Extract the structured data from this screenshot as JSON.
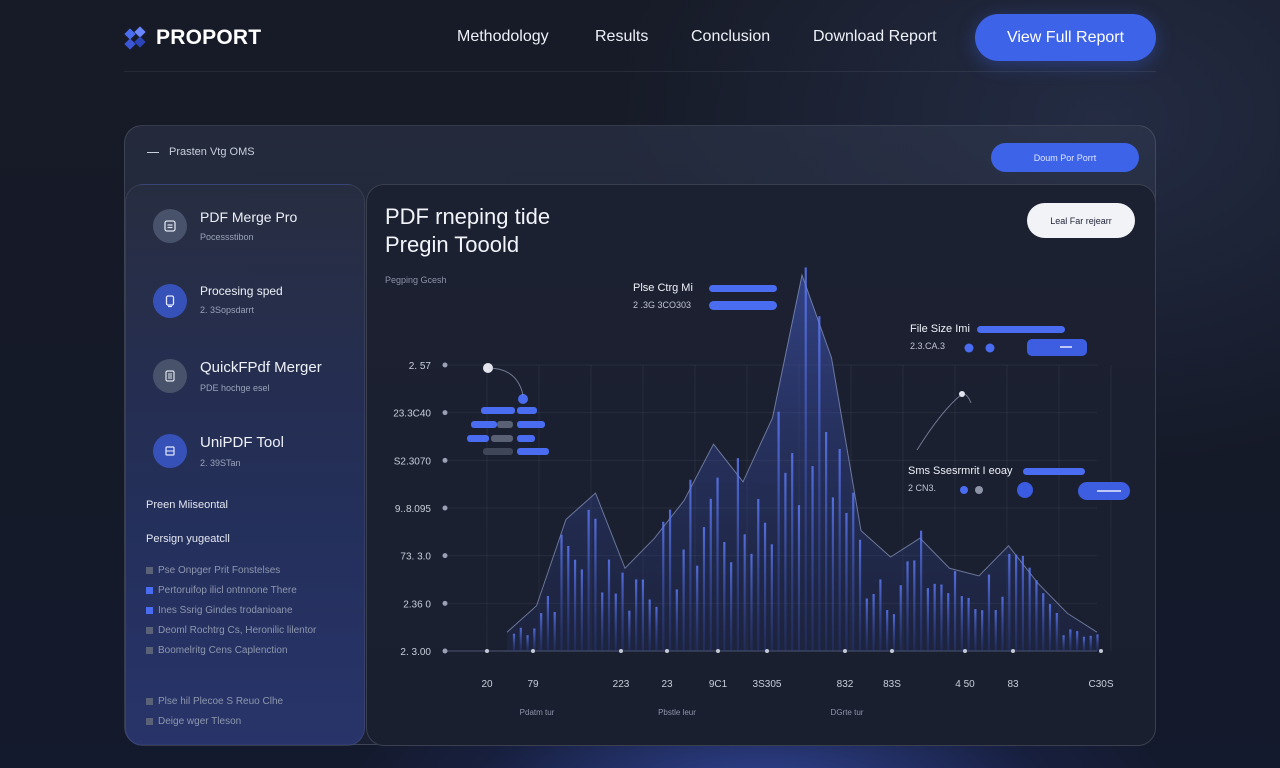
{
  "nav": {
    "brand": "PROPORT",
    "links": [
      "Methodology",
      "Results",
      "Conclusion",
      "Download Report"
    ],
    "cta": "View Full Report"
  },
  "panel": {
    "header": "Prasten Vtg OMS",
    "button": "Doum Por Porrt"
  },
  "sidebar": {
    "tools": [
      {
        "name": "PDF Merge Pro",
        "sub": "Pocessstibon",
        "icon": "document-icon"
      },
      {
        "name": "Procesing sped",
        "sub": "2. 3Sopsdarrt",
        "icon": "device-icon"
      },
      {
        "name": "QuickFPdf Merger",
        "sub": "PDE hochge esel",
        "icon": "list-icon"
      },
      {
        "name": "UniPDF Tool",
        "sub": "2. 39STan",
        "icon": "stack-icon"
      }
    ],
    "section1": "Preen Miiseontal",
    "section2": "Persign yugeatcll",
    "legend": [
      {
        "label": "Pse Onpger Prit Fonstelses",
        "color": "#5a6278"
      },
      {
        "label": "Pertoruifop ilicl ontnnone There",
        "color": "#4a6cf0"
      },
      {
        "label": "Ines Ssrig Gindes trodanioane",
        "color": "#4a6cf0"
      },
      {
        "label": "Deoml Rochtrg Cs, Heronilic lilentor",
        "color": "#5a6278"
      },
      {
        "label": "Boomelritg Cens Caplenction",
        "color": "#5a6278"
      }
    ],
    "footer": [
      {
        "label": "Plse hil Plecoe S Reuo Clhe"
      },
      {
        "label": "Deige wger Tleson"
      }
    ]
  },
  "main": {
    "title_line1": "PDF rneping tide",
    "title_line2": "Pregin Tooold",
    "caption": "Pegping Gcesh",
    "button": "Leal Far rejearr"
  },
  "chart_data": {
    "type": "area",
    "ytick_labels": [
      "2. 57",
      "23.3C40",
      "S2.3070",
      "9..8.095",
      "73. 3.0",
      "2.36 0",
      "2. 3.00"
    ],
    "xtick_labels": [
      "20",
      "79",
      "223",
      "23",
      "9C1",
      "3S305",
      "832",
      "83S",
      "4 50",
      "83",
      "C30S"
    ],
    "xaxis_labels": [
      "Pdatm tur",
      "Pbstle leur",
      "DGrte tur"
    ],
    "series": [
      {
        "name": "envelope",
        "x": [
          0,
          5,
          10,
          15,
          20,
          25,
          30,
          35,
          40,
          45,
          50,
          55,
          60,
          65,
          70,
          75,
          80,
          85,
          90,
          95,
          100
        ],
        "y": [
          0.05,
          0.12,
          0.35,
          0.42,
          0.22,
          0.3,
          0.4,
          0.55,
          0.45,
          0.62,
          1.0,
          0.78,
          0.32,
          0.25,
          0.3,
          0.22,
          0.2,
          0.28,
          0.18,
          0.1,
          0.05
        ]
      },
      {
        "name": "bars",
        "x": [],
        "y": []
      }
    ],
    "annotations": [
      {
        "label": "Plse Ctrg Mi",
        "value": "2 .3G 3CO303"
      },
      {
        "label": "File Size Imi",
        "value": "2.3.CA.3"
      },
      {
        "label": "Sms Ssesrmrit I eoay",
        "value": "2 CN3."
      }
    ]
  }
}
